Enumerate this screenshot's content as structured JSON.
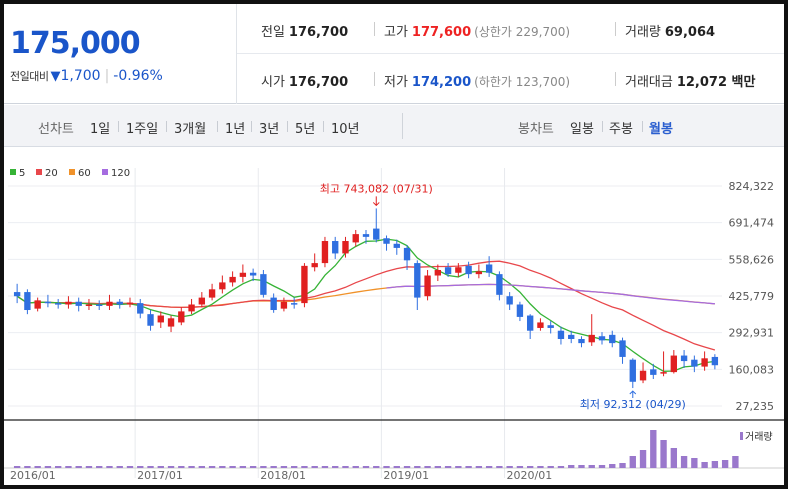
{
  "quote": {
    "current_price": "175,000",
    "change_label": "전일대비",
    "change_arrow": "▼",
    "change_amount": "1,700",
    "change_rate": "-0.96%",
    "prev_close_label": "전일",
    "prev_close": "176,700",
    "high_label": "고가",
    "high": "177,600",
    "upper_limit": "(상한가 229,700)",
    "volume_label": "거래량",
    "volume": "69,064",
    "open_label": "시가",
    "open": "176,700",
    "low_label": "저가",
    "low": "174,200",
    "lower_limit": "(하한가 123,700)",
    "amount_label": "거래대금",
    "amount": "12,072 백만"
  },
  "period_bar": {
    "line_chart_label": "선차트",
    "periods": [
      "1일",
      "1주일",
      "3개월",
      "1년",
      "3년",
      "5년",
      "10년"
    ],
    "candle_label": "봉차트",
    "candles": [
      "일봉",
      "주봉",
      "월봉"
    ],
    "active_candle": "월봉"
  },
  "colors": {
    "up": "#e02020",
    "down": "#2f6fe0",
    "ma5": "#36b336",
    "ma20": "#e8474b",
    "ma60": "#f0922a",
    "ma120": "#a56ce0",
    "volume": "#9a78cc"
  },
  "chart_data": {
    "type": "candlestick",
    "legend": [
      "5",
      "20",
      "60",
      "120"
    ],
    "yticks": [
      "824,322",
      "691,474",
      "558,626",
      "425,779",
      "292,931",
      "160,083",
      "27,235"
    ],
    "ytick_values": [
      824322,
      691474,
      558626,
      425779,
      292931,
      160083,
      27235
    ],
    "ylim": [
      27235,
      824322
    ],
    "grid": true,
    "x_labels": [
      "2016/01",
      "2017/01",
      "2018/01",
      "2019/01",
      "2020/01"
    ],
    "annotations": {
      "high": {
        "text": "최고 743,082 (07/31)",
        "value": 743082
      },
      "low": {
        "text": "최저 92,312 (04/29)",
        "value": 92312
      }
    },
    "volume_legend": "거래량",
    "candles": [
      {
        "o": 440000,
        "c": 425000,
        "h": 470000,
        "l": 400000
      },
      {
        "o": 440000,
        "c": 375000,
        "h": 450000,
        "l": 360000
      },
      {
        "o": 380000,
        "c": 410000,
        "h": 420000,
        "l": 370000
      },
      {
        "o": 405000,
        "c": 400000,
        "h": 430000,
        "l": 385000
      },
      {
        "o": 400000,
        "c": 395000,
        "h": 415000,
        "l": 380000
      },
      {
        "o": 395000,
        "c": 405000,
        "h": 425000,
        "l": 380000
      },
      {
        "o": 405000,
        "c": 390000,
        "h": 420000,
        "l": 370000
      },
      {
        "o": 390000,
        "c": 395000,
        "h": 415000,
        "l": 375000
      },
      {
        "o": 395000,
        "c": 390000,
        "h": 410000,
        "l": 375000
      },
      {
        "o": 390000,
        "c": 405000,
        "h": 430000,
        "l": 375000
      },
      {
        "o": 405000,
        "c": 395000,
        "h": 415000,
        "l": 380000
      },
      {
        "o": 395000,
        "c": 402000,
        "h": 420000,
        "l": 385000
      },
      {
        "o": 400000,
        "c": 362000,
        "h": 415000,
        "l": 345000
      },
      {
        "o": 360000,
        "c": 318000,
        "h": 375000,
        "l": 300000
      },
      {
        "o": 330000,
        "c": 355000,
        "h": 370000,
        "l": 310000
      },
      {
        "o": 315000,
        "c": 345000,
        "h": 355000,
        "l": 295000
      },
      {
        "o": 330000,
        "c": 370000,
        "h": 385000,
        "l": 320000
      },
      {
        "o": 370000,
        "c": 395000,
        "h": 415000,
        "l": 360000
      },
      {
        "o": 395000,
        "c": 420000,
        "h": 440000,
        "l": 385000
      },
      {
        "o": 420000,
        "c": 450000,
        "h": 470000,
        "l": 410000
      },
      {
        "o": 450000,
        "c": 475000,
        "h": 500000,
        "l": 435000
      },
      {
        "o": 475000,
        "c": 495000,
        "h": 515000,
        "l": 460000
      },
      {
        "o": 495000,
        "c": 510000,
        "h": 540000,
        "l": 475000
      },
      {
        "o": 510000,
        "c": 500000,
        "h": 525000,
        "l": 480000
      },
      {
        "o": 505000,
        "c": 430000,
        "h": 520000,
        "l": 420000
      },
      {
        "o": 420000,
        "c": 375000,
        "h": 435000,
        "l": 365000
      },
      {
        "o": 380000,
        "c": 405000,
        "h": 420000,
        "l": 370000
      },
      {
        "o": 400000,
        "c": 395000,
        "h": 420000,
        "l": 380000
      },
      {
        "o": 400000,
        "c": 535000,
        "h": 545000,
        "l": 385000
      },
      {
        "o": 530000,
        "c": 545000,
        "h": 580000,
        "l": 515000
      },
      {
        "o": 545000,
        "c": 625000,
        "h": 640000,
        "l": 530000
      },
      {
        "o": 625000,
        "c": 580000,
        "h": 640000,
        "l": 560000
      },
      {
        "o": 580000,
        "c": 625000,
        "h": 640000,
        "l": 565000
      },
      {
        "o": 620000,
        "c": 650000,
        "h": 665000,
        "l": 605000
      },
      {
        "o": 650000,
        "c": 640000,
        "h": 665000,
        "l": 615000
      },
      {
        "o": 670000,
        "c": 630000,
        "h": 743082,
        "l": 620000
      },
      {
        "o": 635000,
        "c": 615000,
        "h": 645000,
        "l": 590000
      },
      {
        "o": 615000,
        "c": 600000,
        "h": 630000,
        "l": 575000
      },
      {
        "o": 600000,
        "c": 555000,
        "h": 610000,
        "l": 520000
      },
      {
        "o": 545000,
        "c": 420000,
        "h": 555000,
        "l": 375000
      },
      {
        "o": 425000,
        "c": 500000,
        "h": 520000,
        "l": 410000
      },
      {
        "o": 500000,
        "c": 520000,
        "h": 540000,
        "l": 480000
      },
      {
        "o": 530000,
        "c": 505000,
        "h": 545000,
        "l": 495000
      },
      {
        "o": 510000,
        "c": 530000,
        "h": 545000,
        "l": 495000
      },
      {
        "o": 535000,
        "c": 505000,
        "h": 550000,
        "l": 490000
      },
      {
        "o": 505000,
        "c": 515000,
        "h": 540000,
        "l": 490000
      },
      {
        "o": 540000,
        "c": 510000,
        "h": 570000,
        "l": 495000
      },
      {
        "o": 505000,
        "c": 430000,
        "h": 515000,
        "l": 410000
      },
      {
        "o": 425000,
        "c": 395000,
        "h": 440000,
        "l": 375000
      },
      {
        "o": 395000,
        "c": 350000,
        "h": 405000,
        "l": 335000
      },
      {
        "o": 355000,
        "c": 300000,
        "h": 360000,
        "l": 270000
      },
      {
        "o": 310000,
        "c": 330000,
        "h": 345000,
        "l": 300000
      },
      {
        "o": 320000,
        "c": 310000,
        "h": 335000,
        "l": 290000
      },
      {
        "o": 300000,
        "c": 270000,
        "h": 315000,
        "l": 250000
      },
      {
        "o": 285000,
        "c": 270000,
        "h": 300000,
        "l": 255000
      },
      {
        "o": 270000,
        "c": 255000,
        "h": 280000,
        "l": 240000
      },
      {
        "o": 258000,
        "c": 285000,
        "h": 360000,
        "l": 245000
      },
      {
        "o": 280000,
        "c": 265000,
        "h": 295000,
        "l": 250000
      },
      {
        "o": 285000,
        "c": 255000,
        "h": 300000,
        "l": 240000
      },
      {
        "o": 265000,
        "c": 205000,
        "h": 275000,
        "l": 180000
      },
      {
        "o": 195000,
        "c": 115000,
        "h": 200000,
        "l": 92312
      },
      {
        "o": 120000,
        "c": 155000,
        "h": 185000,
        "l": 110000
      },
      {
        "o": 160000,
        "c": 140000,
        "h": 180000,
        "l": 125000
      },
      {
        "o": 145000,
        "c": 150000,
        "h": 225000,
        "l": 135000
      },
      {
        "o": 150000,
        "c": 210000,
        "h": 230000,
        "l": 145000
      },
      {
        "o": 210000,
        "c": 190000,
        "h": 230000,
        "l": 165000
      },
      {
        "o": 195000,
        "c": 170000,
        "h": 210000,
        "l": 150000
      },
      {
        "o": 170000,
        "c": 200000,
        "h": 225000,
        "l": 155000
      },
      {
        "o": 205000,
        "c": 175000,
        "h": 215000,
        "l": 160000
      }
    ],
    "volumes": [
      2,
      2,
      2,
      2,
      2,
      2,
      2,
      2,
      2,
      2,
      2,
      2,
      2,
      2,
      2,
      2,
      2,
      2,
      2,
      2,
      2,
      2,
      2,
      2,
      2,
      2,
      2,
      2,
      2,
      2,
      2,
      2,
      2,
      2,
      2,
      2,
      2,
      2,
      2,
      2,
      2,
      2,
      2,
      2,
      2,
      2,
      2,
      2,
      2,
      2,
      2,
      2,
      2,
      2,
      3,
      3,
      3,
      3,
      4,
      5,
      12,
      18,
      38,
      28,
      20,
      12,
      10,
      6,
      7,
      8,
      12
    ]
  }
}
